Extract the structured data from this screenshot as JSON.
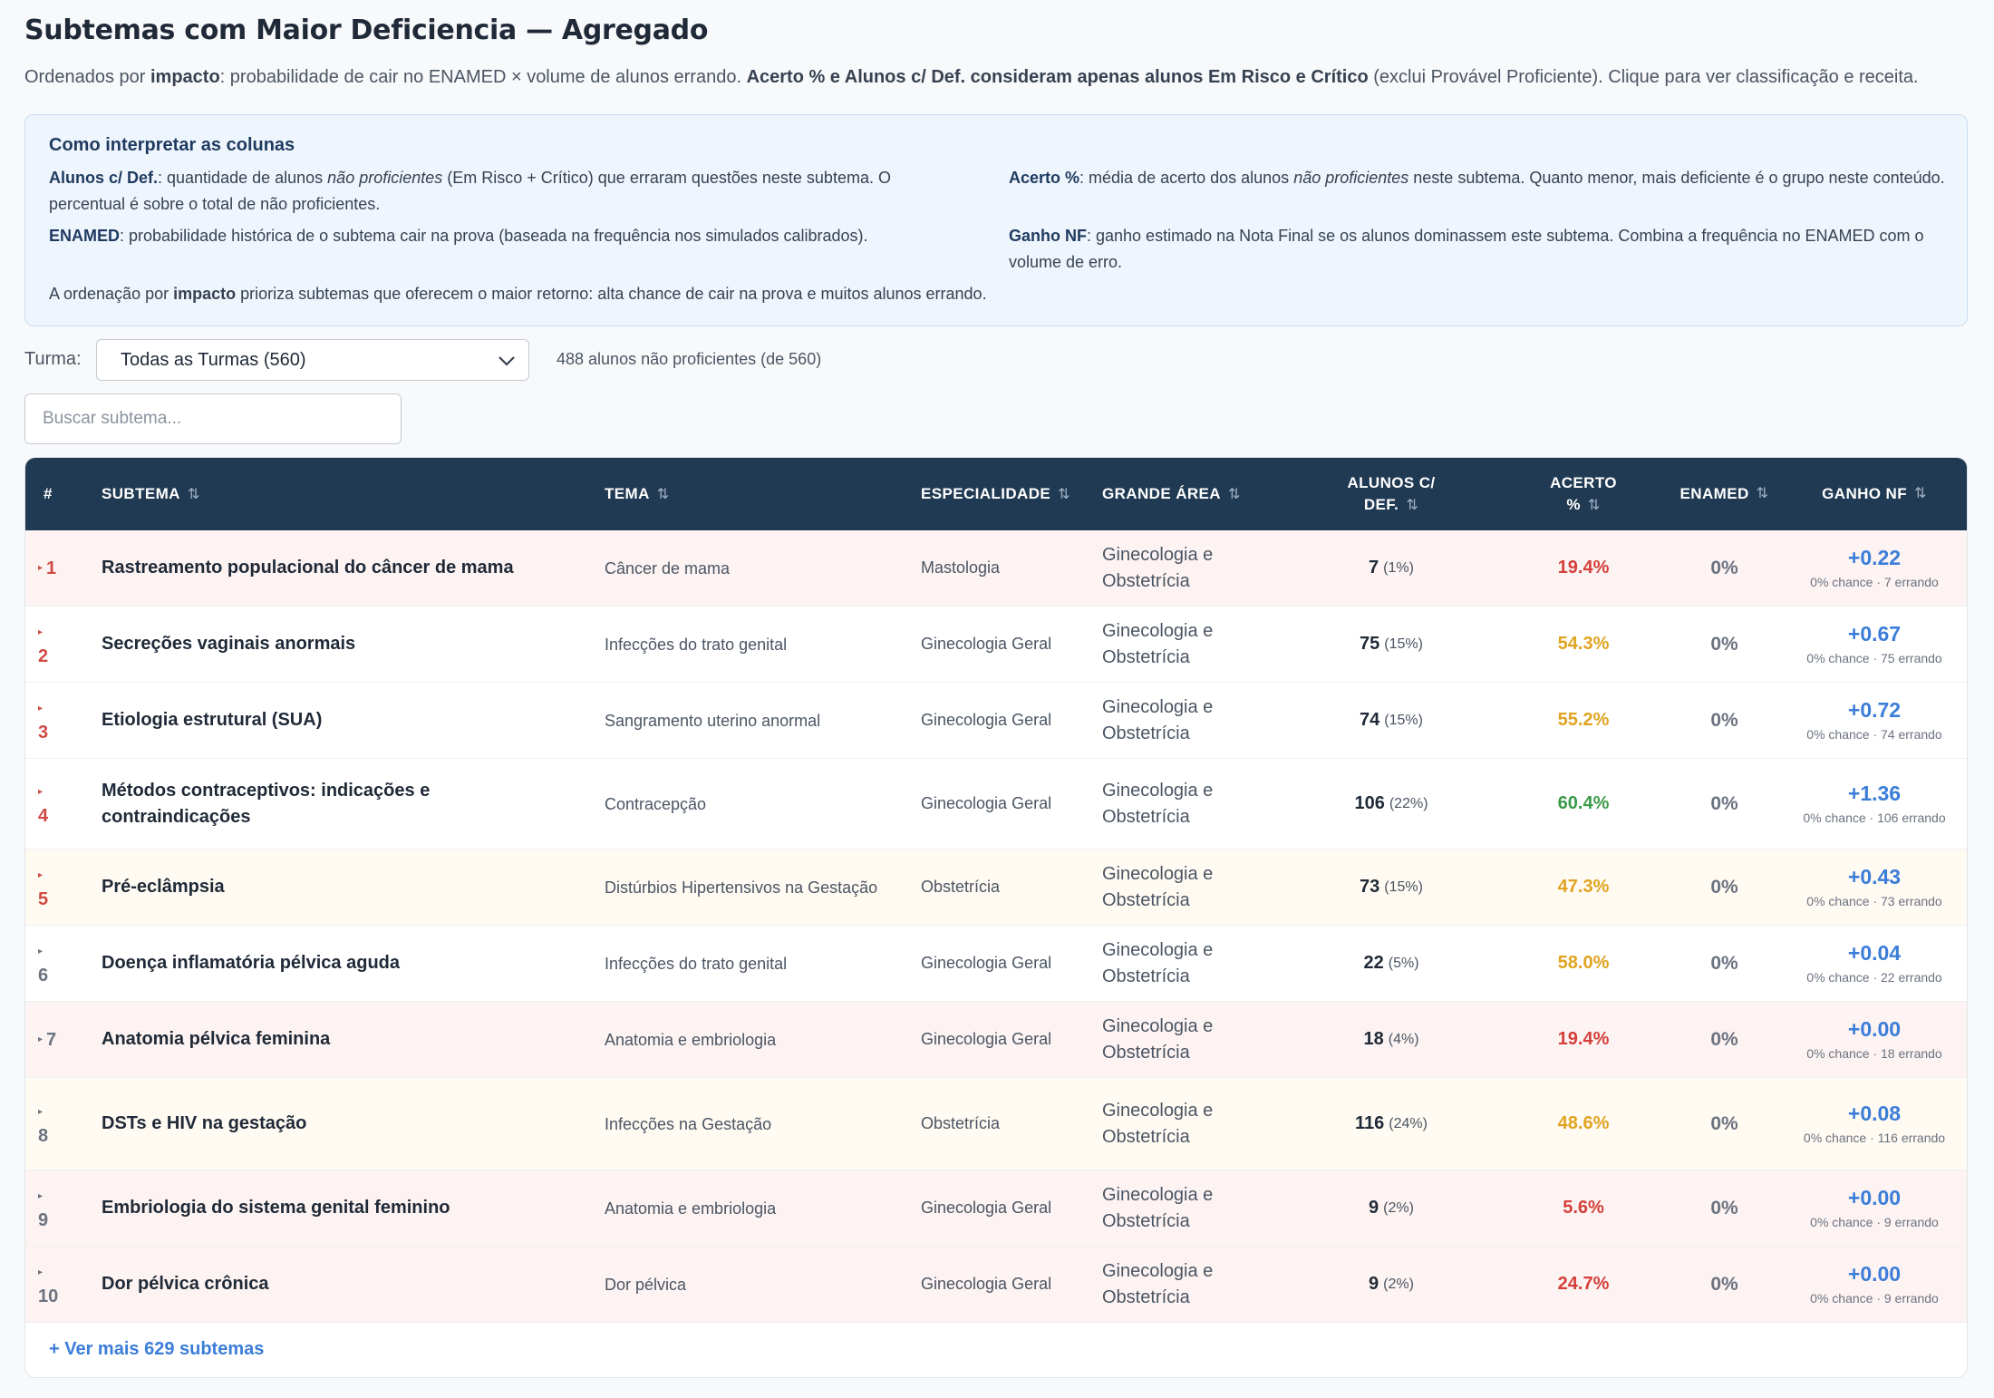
{
  "header": {
    "title": "Subtemas com Maior Deficiencia — Agregado",
    "subtitle_p1": "Ordenados por ",
    "subtitle_b1": "impacto",
    "subtitle_p2": ": probabilidade de cair no ENAMED × volume de alunos errando. ",
    "subtitle_b2": "Acerto % e Alunos c/ Def. consideram apenas alunos Em Risco e Crítico",
    "subtitle_p3": " (exclui Provável Proficiente). Clique para ver classificação e receita."
  },
  "legend": {
    "title": "Como interpretar as colunas",
    "alunos_term": "Alunos c/ Def.",
    "alunos_p1": ": quantidade de alunos ",
    "alunos_em": "não proficientes",
    "alunos_p2": " (Em Risco + Crítico) que erraram questões neste subtema. O percentual é sobre o total de não proficientes.",
    "acerto_term": "Acerto %",
    "acerto_p1": ": média de acerto dos alunos ",
    "acerto_em": "não proficientes",
    "acerto_p2": " neste subtema. Quanto menor, mais deficiente é o grupo neste conteúdo.",
    "enamed_term": "ENAMED",
    "enamed_desc": ": probabilidade histórica de o subtema cair na prova (baseada na frequência nos simulados calibrados).",
    "ganho_term": "Ganho NF",
    "ganho_desc": ": ganho estimado na Nota Final se os alunos dominassem este subtema. Combina a frequência no ENAMED com o volume de erro.",
    "note_p1": "A ordenação por ",
    "note_b": "impacto",
    "note_p2": " prioriza subtemas que oferecem o maior retorno: alta chance de cair na prova e muitos alunos errando."
  },
  "filter": {
    "label": "Turma:",
    "selected": "Todas as Turmas (560)",
    "count_text": "488 alunos não proficientes (de 560)"
  },
  "search": {
    "placeholder": "Buscar subtema..."
  },
  "table": {
    "columns": {
      "rank": "#",
      "subtema": "SUBTEMA",
      "tema": "TEMA",
      "especialidade": "ESPECIALIDADE",
      "area": "GRANDE ÁREA",
      "alunos_l1": "ALUNOS C/",
      "alunos_l2": "DEF.",
      "acerto_l1": "ACERTO",
      "acerto_l2": "%",
      "enamed": "ENAMED",
      "ganho": "GANHO NF"
    },
    "sort_icon": "⇅",
    "rows": [
      {
        "rank": "1",
        "subtema": "Rastreamento populacional do câncer de mama",
        "tema": "Câncer de mama",
        "especialidade": "Mastologia",
        "area": "Ginecologia e Obstetrícia",
        "alunos": "7",
        "alunos_pct": "(1%)",
        "acerto": "19.4%",
        "enamed": "0%",
        "ganho": "+0.22",
        "ganho_sub": "0% chance · 7 errando",
        "bg": "#fdf3f2",
        "rank_color": "#d04a44",
        "acerto_color": "#d43f3a"
      },
      {
        "rank": "2",
        "subtema": "Secreções vaginais anormais",
        "tema": "Infecções do trato genital",
        "especialidade": "Ginecologia Geral",
        "area": "Ginecologia e Obstetrícia",
        "alunos": "75",
        "alunos_pct": "(15%)",
        "acerto": "54.3%",
        "enamed": "0%",
        "ganho": "+0.67",
        "ganho_sub": "0% chance · 75 errando",
        "bg": "#ffffff",
        "rank_color": "#d04a44",
        "acerto_color": "#e0a320"
      },
      {
        "rank": "3",
        "subtema": "Etiologia estrutural (SUA)",
        "tema": "Sangramento uterino anormal",
        "especialidade": "Ginecologia Geral",
        "area": "Ginecologia e Obstetrícia",
        "alunos": "74",
        "alunos_pct": "(15%)",
        "acerto": "55.2%",
        "enamed": "0%",
        "ganho": "+0.72",
        "ganho_sub": "0% chance · 74 errando",
        "bg": "#ffffff",
        "rank_color": "#d04a44",
        "acerto_color": "#e0a320"
      },
      {
        "rank": "4",
        "subtema": "Métodos contraceptivos: indicações e contraindicações",
        "tema": "Contracepção",
        "especialidade": "Ginecologia Geral",
        "area": "Ginecologia e Obstetrícia",
        "alunos": "106",
        "alunos_pct": "(22%)",
        "acerto": "60.4%",
        "enamed": "0%",
        "ganho": "+1.36",
        "ganho_sub": "0% chance · 106 errando",
        "bg": "#ffffff",
        "rank_color": "#d04a44",
        "acerto_color": "#3a9a47"
      },
      {
        "rank": "5",
        "subtema": "Pré-eclâmpsia",
        "tema": "Distúrbios Hipertensivos na Gestação",
        "especialidade": "Obstetrícia",
        "area": "Ginecologia e Obstetrícia",
        "alunos": "73",
        "alunos_pct": "(15%)",
        "acerto": "47.3%",
        "enamed": "0%",
        "ganho": "+0.43",
        "ganho_sub": "0% chance · 73 errando",
        "bg": "#fffaf2",
        "rank_color": "#d04a44",
        "acerto_color": "#e0a320"
      },
      {
        "rank": "6",
        "subtema": "Doença inflamatória pélvica aguda",
        "tema": "Infecções do trato genital",
        "especialidade": "Ginecologia Geral",
        "area": "Ginecologia e Obstetrícia",
        "alunos": "22",
        "alunos_pct": "(5%)",
        "acerto": "58.0%",
        "enamed": "0%",
        "ganho": "+0.04",
        "ganho_sub": "0% chance · 22 errando",
        "bg": "#ffffff",
        "rank_color": "#6b7280",
        "acerto_color": "#e0a320"
      },
      {
        "rank": "7",
        "subtema": "Anatomia pélvica feminina",
        "tema": "Anatomia e embriologia",
        "especialidade": "Ginecologia Geral",
        "area": "Ginecologia e Obstetrícia",
        "alunos": "18",
        "alunos_pct": "(4%)",
        "acerto": "19.4%",
        "enamed": "0%",
        "ganho": "+0.00",
        "ganho_sub": "0% chance · 18 errando",
        "bg": "#fdf3f2",
        "rank_color": "#6b7280",
        "acerto_color": "#d43f3a"
      },
      {
        "rank": "8",
        "subtema": "DSTs e HIV na gestação",
        "tema": "Infecções na Gestação",
        "especialidade": "Obstetrícia",
        "area": "Ginecologia e Obstetrícia",
        "alunos": "116",
        "alunos_pct": "(24%)",
        "acerto": "48.6%",
        "enamed": "0%",
        "ganho": "+0.08",
        "ganho_sub": "0% chance · 116 errando",
        "bg": "#fffaf2",
        "rank_color": "#6b7280",
        "acerto_color": "#e0a320"
      },
      {
        "rank": "9",
        "subtema": "Embriologia do sistema genital feminino",
        "tema": "Anatomia e embriologia",
        "especialidade": "Ginecologia Geral",
        "area": "Ginecologia e Obstetrícia",
        "alunos": "9",
        "alunos_pct": "(2%)",
        "acerto": "5.6%",
        "enamed": "0%",
        "ganho": "+0.00",
        "ganho_sub": "0% chance · 9 errando",
        "bg": "#fdf3f2",
        "rank_color": "#6b7280",
        "acerto_color": "#d43f3a"
      },
      {
        "rank": "10",
        "subtema": "Dor pélvica crônica",
        "tema": "Dor pélvica",
        "especialidade": "Ginecologia Geral",
        "area": "Ginecologia e Obstetrícia",
        "alunos": "9",
        "alunos_pct": "(2%)",
        "acerto": "24.7%",
        "enamed": "0%",
        "ganho": "+0.00",
        "ganho_sub": "0% chance · 9 errando",
        "bg": "#fdf3f2",
        "rank_color": "#6b7280",
        "acerto_color": "#d43f3a"
      }
    ],
    "more_link": "+ Ver mais 629 subtemas"
  }
}
